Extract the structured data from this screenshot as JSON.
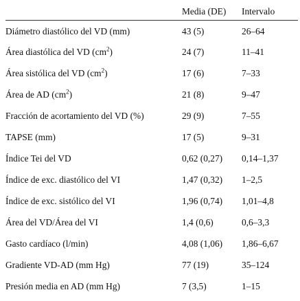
{
  "table": {
    "headers": {
      "label": "",
      "mean": "Media (DE)",
      "range": "Intervalo"
    },
    "rows": [
      {
        "label": "Diámetro diastólico del VD (mm)",
        "sup": "",
        "label_tail": "",
        "mean": "43 (5)",
        "range": "26–64"
      },
      {
        "label": "Área diastólica del VD (cm",
        "sup": "2",
        "label_tail": ")",
        "mean": "24 (7)",
        "range": "11–41"
      },
      {
        "label": "Área sistólica del VD (cm",
        "sup": "2",
        "label_tail": ")",
        "mean": "17 (6)",
        "range": "7–33"
      },
      {
        "label": "Área de AD (cm",
        "sup": "2",
        "label_tail": ")",
        "mean": "21 (8)",
        "range": "9–47"
      },
      {
        "label": "Fracción de acortamiento del VD (%)",
        "sup": "",
        "label_tail": "",
        "mean": "29 (9)",
        "range": "7–55"
      },
      {
        "label": "TAPSE (mm)",
        "sup": "",
        "label_tail": "",
        "mean": "17 (5)",
        "range": "9–31"
      },
      {
        "label": "Índice Tei del VD",
        "sup": "",
        "label_tail": "",
        "mean": "0,62 (0,27)",
        "range": "0,14–1,37"
      },
      {
        "label": "Índice de exc. diastólico del VI",
        "sup": "",
        "label_tail": "",
        "mean": "1,47 (0,32)",
        "range": "1–2,5"
      },
      {
        "label": "Índice de exc. sistólico del VI",
        "sup": "",
        "label_tail": "",
        "mean": "1,96 (0,74)",
        "range": "1,01–4,8"
      },
      {
        "label": "Área del VD/Área del VI",
        "sup": "",
        "label_tail": "",
        "mean": "1,4 (0,6)",
        "range": "0,6–3,3"
      },
      {
        "label": "Gasto cardíaco (l/min)",
        "sup": "",
        "label_tail": "",
        "mean": "4,08 (1,06)",
        "range": "1,86–6,67"
      },
      {
        "label": "Gradiente VD-AD (mm Hg)",
        "sup": "",
        "label_tail": "",
        "mean": "77 (19)",
        "range": "35–124"
      },
      {
        "label": "Presión media en AD (mm Hg)",
        "sup": "",
        "label_tail": "",
        "mean": "7 (3,5)",
        "range": "1–15"
      }
    ]
  }
}
